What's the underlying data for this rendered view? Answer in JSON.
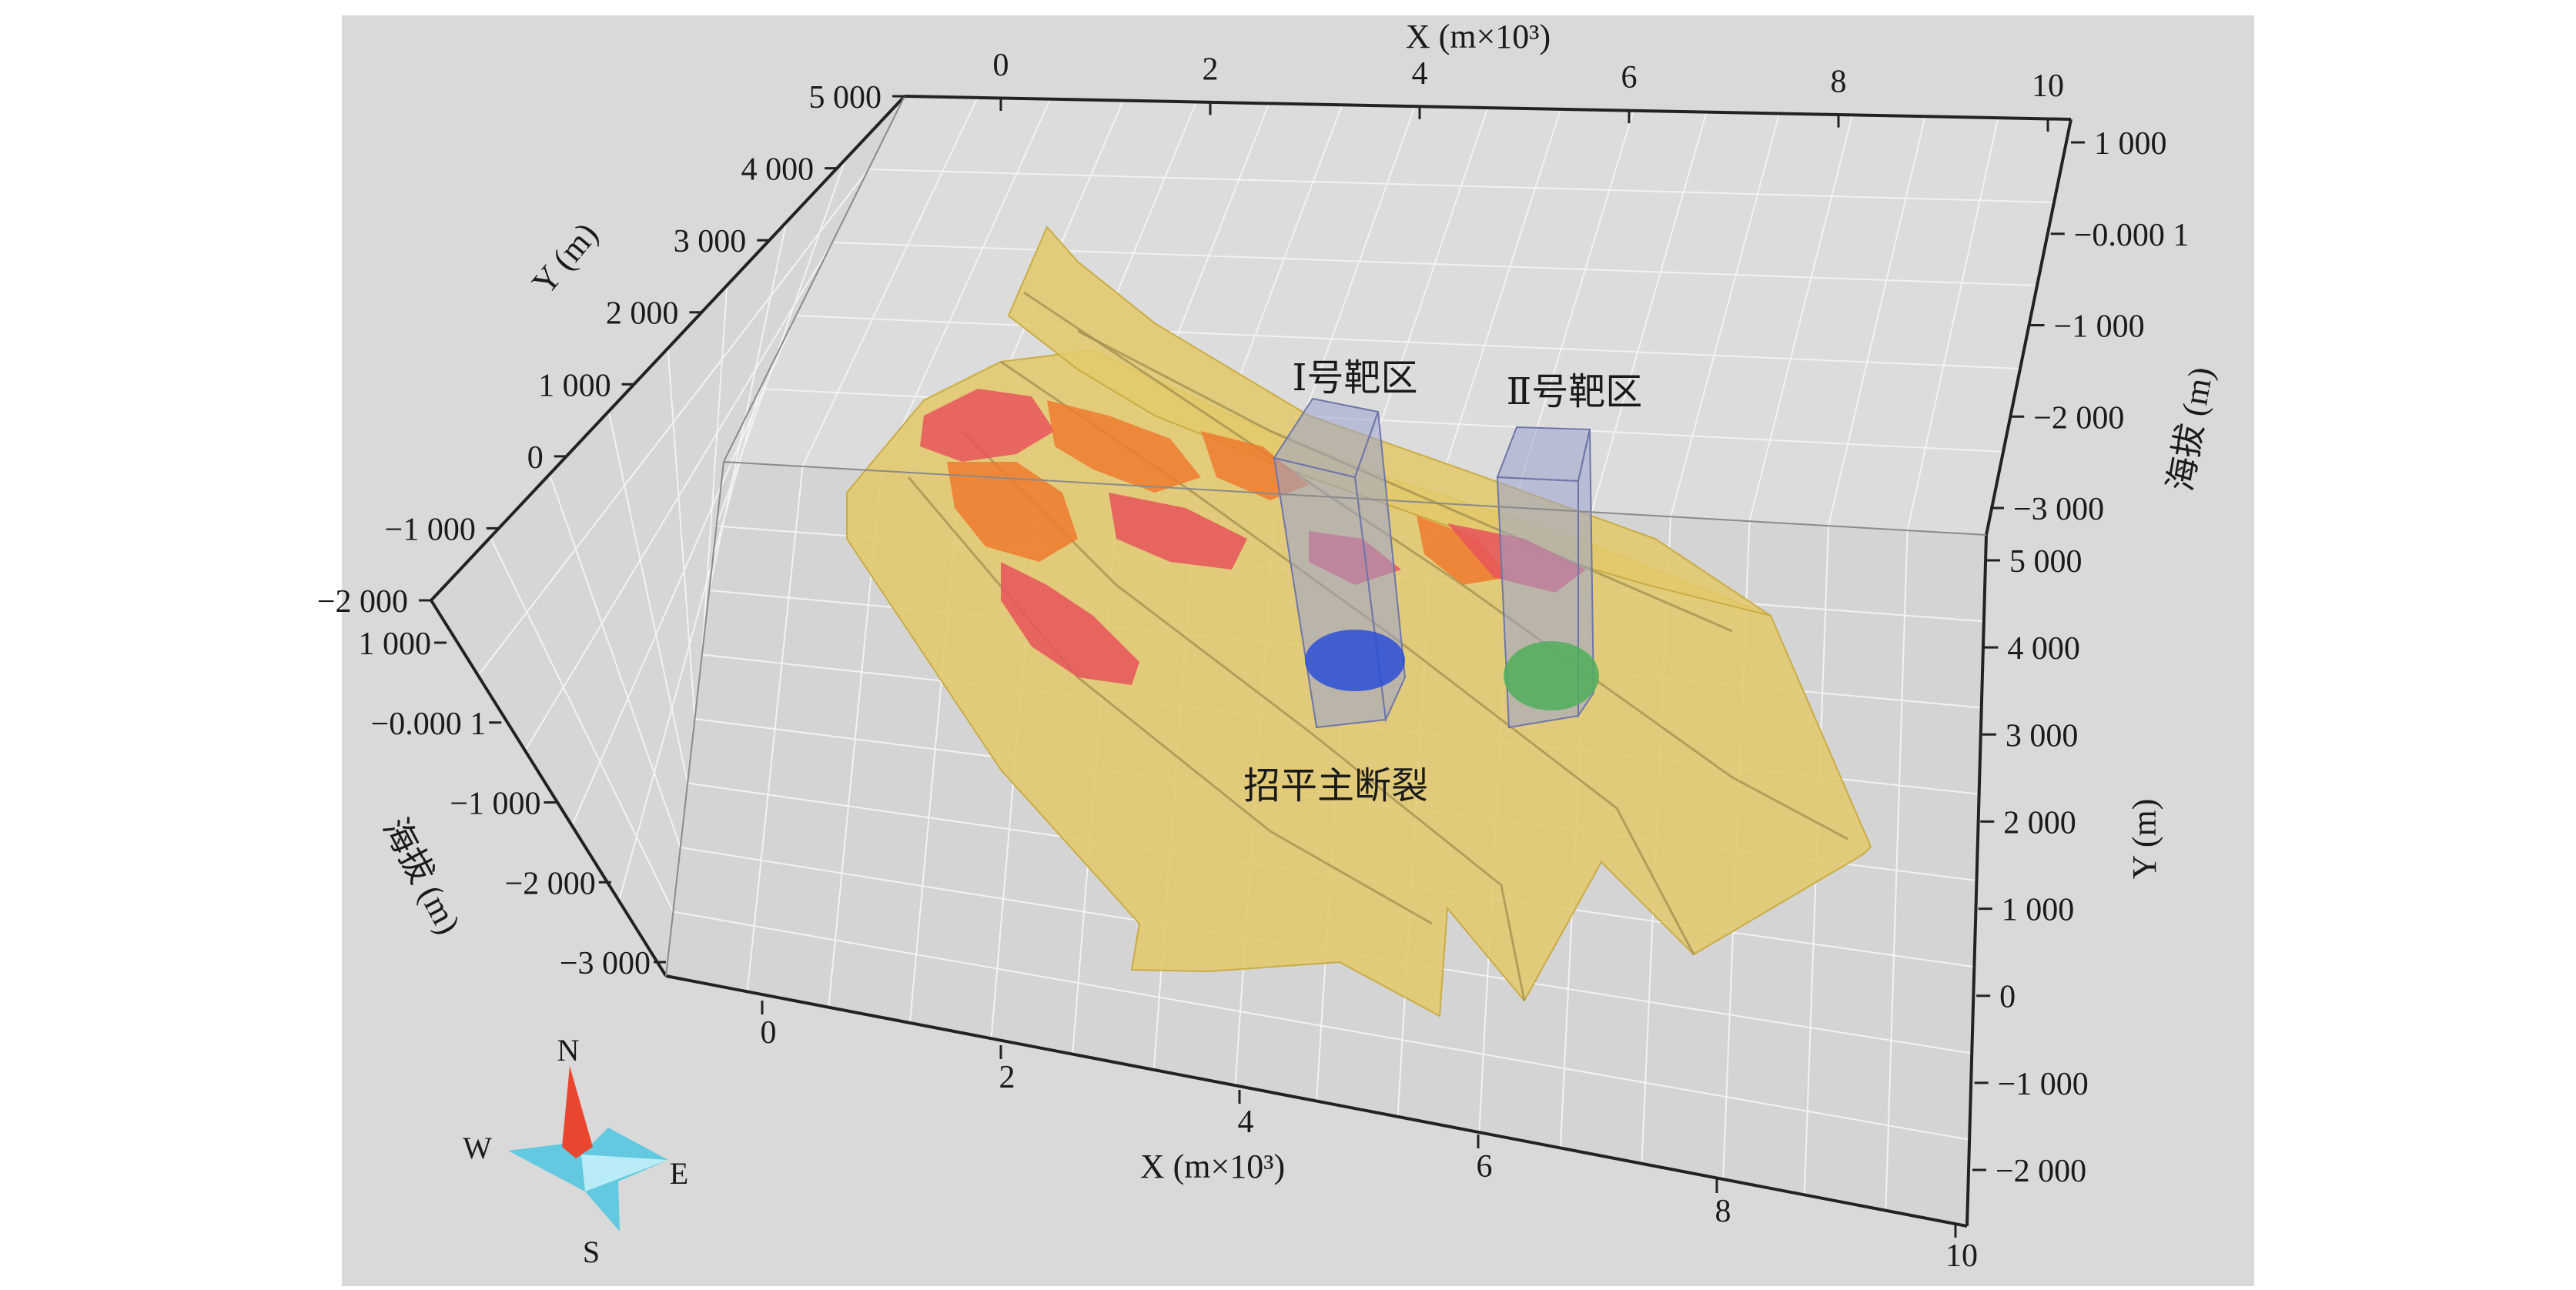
{
  "colors": {
    "background": "#ffffff",
    "panel": "#d9d9d9",
    "grid": "#f2f2f2",
    "axis": "#222222",
    "fault_surface": "#e3c96a",
    "anomaly_red": "#e8535a",
    "anomaly_orange": "#ee7a2e",
    "target_box": "#9aa3cf",
    "ore_blue": "#2a4fd6",
    "ore_green": "#4fae5a",
    "compass_needle": "#e8462e",
    "compass_star": "#62c9e0"
  },
  "axes": {
    "top_x": {
      "title": "X (m×10³)",
      "ticks": [
        "0",
        "2",
        "4",
        "6",
        "8",
        "10"
      ]
    },
    "left_y": {
      "title": "Y (m)",
      "ticks": [
        "5 000",
        "4 000",
        "3 000",
        "2 000",
        "1 000",
        "0",
        "−1 000",
        "−2 000"
      ]
    },
    "left_elev": {
      "title": "海拔 (m)",
      "ticks": [
        "1 000",
        "−0.000 1",
        "−1 000",
        "−2 000",
        "−3 000"
      ]
    },
    "right_elev": {
      "title": "海拔 (m)",
      "ticks": [
        "1 000",
        "−0.000 1",
        "−1 000",
        "−2 000",
        "−3 000"
      ]
    },
    "right_y": {
      "title": "Y (m)",
      "ticks": [
        "5 000",
        "4 000",
        "3 000",
        "2 000",
        "1 000",
        "0",
        "−1 000",
        "−2 000"
      ]
    },
    "bottom_x": {
      "title": "X (m×10³)",
      "ticks": [
        "0",
        "2",
        "4",
        "6",
        "8",
        "10"
      ]
    }
  },
  "annotations": {
    "target1": "Ⅰ号靶区",
    "target2": "Ⅱ号靶区",
    "fault": "招平主断裂"
  },
  "compass": {
    "n": "N",
    "s": "S",
    "e": "E",
    "w": "W"
  }
}
